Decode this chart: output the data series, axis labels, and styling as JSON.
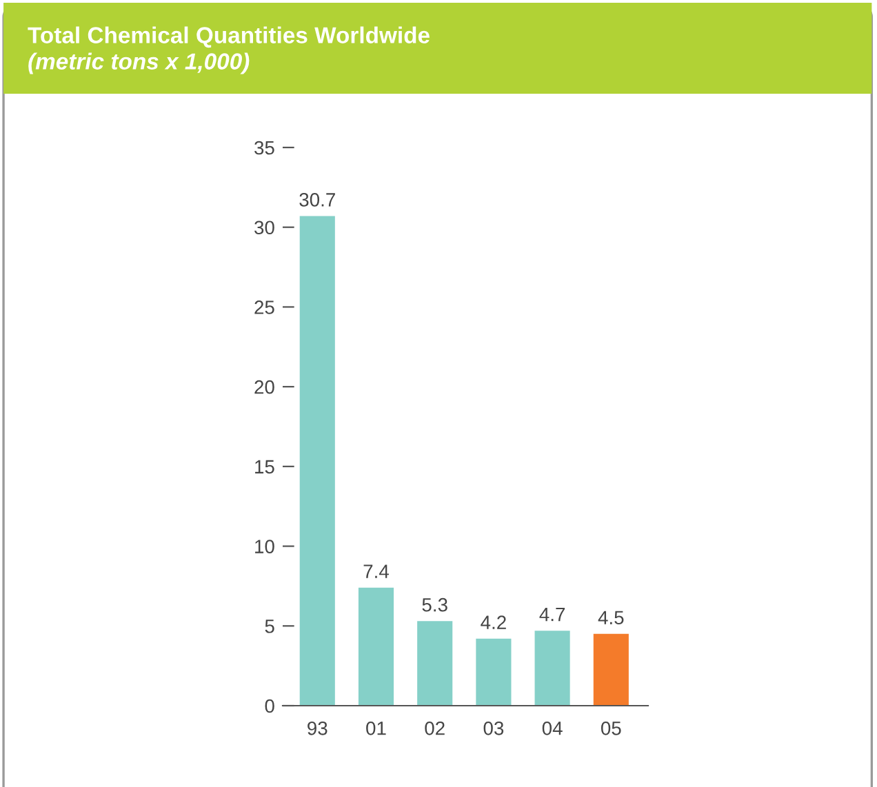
{
  "chart_data": {
    "type": "bar",
    "title": "Total Chemical Quantities Worldwide",
    "subtitle": "(metric tons x 1,000)",
    "categories": [
      "93",
      "01",
      "02",
      "03",
      "04",
      "05"
    ],
    "values": [
      30.7,
      7.4,
      5.3,
      4.2,
      4.7,
      4.5
    ],
    "colors": [
      "#85d0c8",
      "#85d0c8",
      "#85d0c8",
      "#85d0c8",
      "#85d0c8",
      "#f47b2a"
    ],
    "ylim": [
      0,
      35
    ],
    "yticks": [
      0,
      5,
      10,
      15,
      20,
      25,
      30,
      35
    ],
    "grid": false,
    "data_labels": true
  }
}
